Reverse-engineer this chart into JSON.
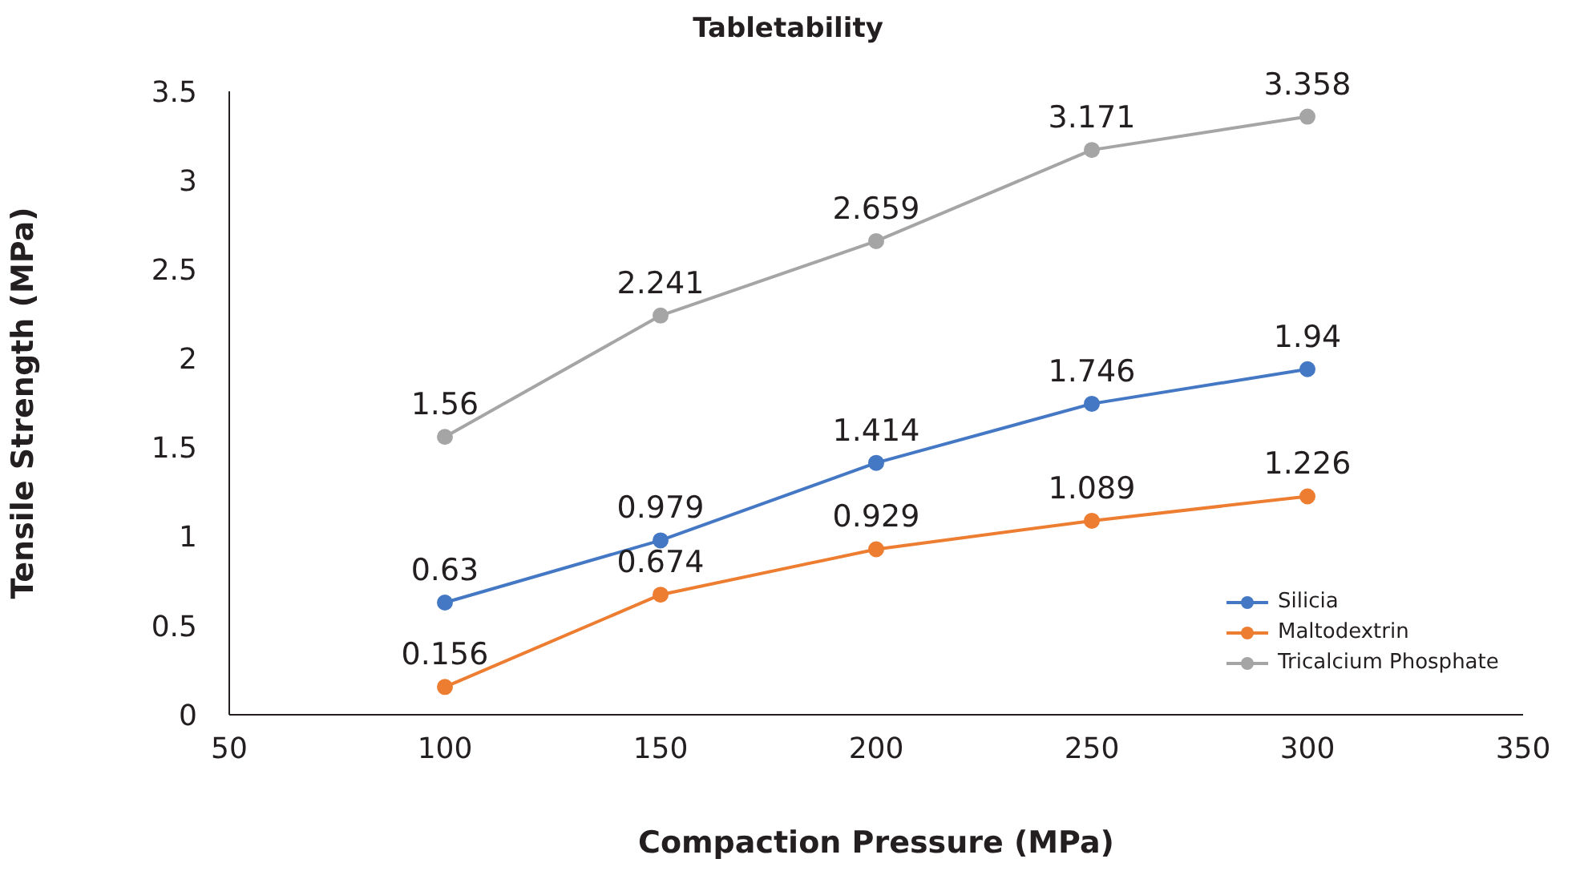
{
  "chart_data": {
    "type": "line",
    "title": "Tabletability",
    "xlabel": "Compaction Pressure (MPa)",
    "ylabel": "Tensile Strength (MPa)",
    "x": [
      100,
      150,
      200,
      250,
      300
    ],
    "series": [
      {
        "name": "Silicia",
        "color": "#4478c4",
        "values": [
          0.63,
          0.979,
          1.414,
          1.746,
          1.94
        ]
      },
      {
        "name": "Maltodextrin",
        "color": "#ed7d31",
        "values": [
          0.156,
          0.674,
          0.929,
          1.089,
          1.226
        ]
      },
      {
        "name": "Tricalcium Phosphate",
        "color": "#a5a5a5",
        "values": [
          1.56,
          2.241,
          2.659,
          3.171,
          3.358
        ]
      }
    ],
    "xlim": [
      50,
      350
    ],
    "xticks": [
      50,
      100,
      150,
      200,
      250,
      300,
      350
    ],
    "ylim": [
      0,
      3.5
    ],
    "yticks": [
      0,
      0.5,
      1,
      1.5,
      2,
      2.5,
      3,
      3.5
    ],
    "grid": false,
    "legend": "bottom right",
    "marker": "circle",
    "line_style": "solid",
    "data_labels": true
  }
}
